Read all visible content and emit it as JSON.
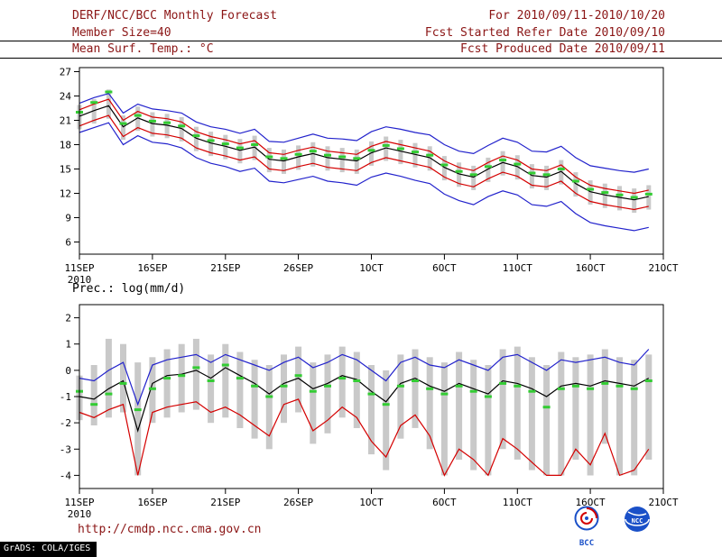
{
  "header": {
    "title": "DERF/NCC/BCC Monthly Forecast",
    "member_size": "Member Size=40",
    "variable": "Mean Surf. Temp.: °C",
    "for_range": "For 2010/09/11-2010/10/20",
    "fcst_started": "Fcst Started Refer Date 2010/09/10",
    "fcst_produced": "Fcst Produced Date 2010/09/11"
  },
  "footer": {
    "url": "http://cmdp.ncc.cma.gov.cn",
    "grads_credit": "GrADS: COLA/IGES",
    "bcc_label": "BCC",
    "ncc_label": "NCC"
  },
  "colors": {
    "header_text": "#8b1515",
    "line_blue": "#2222cc",
    "line_red": "#d40000",
    "line_black": "#000000",
    "marker_green": "#33cc33",
    "bar_gray": "#c9c9c9"
  },
  "chart_data": [
    {
      "type": "line",
      "title": "Mean Surf. Temp.: °C",
      "ylabel": "°C",
      "ylim": [
        4.5,
        27.5
      ],
      "yticks": [
        27,
        24,
        21,
        18,
        15,
        12,
        9,
        6
      ],
      "x_span": 40,
      "x_tick_days": [
        0,
        5,
        10,
        15,
        20,
        25,
        30,
        35,
        40
      ],
      "x_tick_labels": [
        "11SEP",
        "16SEP",
        "21SEP",
        "26SEP",
        "1OCT",
        "6OCT",
        "11OCT",
        "16OCT",
        "21OCT"
      ],
      "x_sub_label": "2010",
      "grid": false,
      "legend": "none",
      "series": [
        {
          "name": "member-spread",
          "type": "bar-range",
          "color": "#c9c9c9",
          "hi": [
            22.9,
            23.6,
            24.8,
            21.6,
            22.7,
            22.0,
            21.8,
            21.4,
            20.2,
            19.6,
            19.2,
            18.7,
            19.1,
            17.6,
            17.4,
            17.9,
            18.3,
            17.8,
            17.6,
            17.4,
            18.4,
            19.0,
            18.6,
            18.2,
            17.8,
            16.6,
            15.8,
            15.4,
            16.4,
            17.2,
            16.7,
            15.6,
            15.4,
            16.1,
            14.6,
            13.6,
            13.2,
            12.9,
            12.6,
            13.0
          ],
          "lo": [
            19.9,
            20.6,
            21.2,
            18.6,
            19.7,
            19.0,
            18.8,
            18.4,
            17.2,
            16.6,
            16.2,
            15.7,
            16.1,
            14.6,
            14.4,
            14.9,
            15.3,
            14.8,
            14.6,
            14.4,
            15.4,
            16.0,
            15.6,
            15.2,
            14.8,
            13.6,
            12.8,
            12.4,
            13.4,
            14.2,
            13.7,
            12.6,
            12.4,
            13.1,
            11.6,
            10.6,
            10.2,
            9.9,
            9.6,
            10.0
          ]
        },
        {
          "name": "envelope-upper",
          "type": "line",
          "color": "#2222cc",
          "values": [
            23.1,
            23.8,
            24.3,
            21.9,
            23.0,
            22.4,
            22.2,
            21.9,
            20.8,
            20.2,
            19.9,
            19.4,
            19.9,
            18.4,
            18.3,
            18.8,
            19.3,
            18.8,
            18.7,
            18.5,
            19.6,
            20.2,
            19.9,
            19.5,
            19.2,
            18.0,
            17.2,
            16.9,
            17.9,
            18.8,
            18.3,
            17.2,
            17.1,
            17.8,
            16.4,
            15.4,
            15.1,
            14.8,
            14.6,
            15.0
          ]
        },
        {
          "name": "quartile-upper",
          "type": "line",
          "color": "#d40000",
          "values": [
            22.3,
            23.0,
            23.6,
            21.0,
            22.1,
            21.4,
            21.2,
            20.8,
            19.6,
            19.0,
            18.6,
            18.1,
            18.5,
            17.0,
            16.8,
            17.3,
            17.7,
            17.2,
            17.0,
            16.8,
            17.8,
            18.4,
            18.0,
            17.6,
            17.2,
            16.0,
            15.2,
            14.8,
            15.8,
            16.6,
            16.1,
            15.0,
            14.8,
            15.5,
            14.0,
            13.0,
            12.6,
            12.3,
            12.0,
            12.4
          ]
        },
        {
          "name": "median",
          "type": "line",
          "color": "#000000",
          "values": [
            21.5,
            22.2,
            22.8,
            20.2,
            21.3,
            20.6,
            20.4,
            20.0,
            18.8,
            18.2,
            17.8,
            17.3,
            17.7,
            16.2,
            16.0,
            16.5,
            16.9,
            16.4,
            16.2,
            16.0,
            17.0,
            17.6,
            17.2,
            16.8,
            16.4,
            15.2,
            14.4,
            14.0,
            15.0,
            15.8,
            15.3,
            14.2,
            14.0,
            14.7,
            13.2,
            12.2,
            11.8,
            11.5,
            11.2,
            11.6
          ]
        },
        {
          "name": "quartile-lower",
          "type": "line",
          "color": "#d40000",
          "values": [
            20.3,
            21.0,
            21.6,
            19.0,
            20.1,
            19.4,
            19.2,
            18.8,
            17.6,
            17.0,
            16.6,
            16.1,
            16.5,
            15.0,
            14.8,
            15.3,
            15.7,
            15.2,
            15.0,
            14.8,
            15.8,
            16.4,
            16.0,
            15.6,
            15.2,
            14.0,
            13.2,
            12.8,
            13.8,
            14.6,
            14.1,
            13.0,
            12.8,
            13.5,
            12.0,
            11.0,
            10.6,
            10.3,
            10.0,
            10.4
          ]
        },
        {
          "name": "envelope-lower",
          "type": "line",
          "color": "#2222cc",
          "values": [
            19.5,
            20.1,
            20.7,
            18.0,
            19.1,
            18.3,
            18.1,
            17.6,
            16.4,
            15.7,
            15.3,
            14.7,
            15.1,
            13.5,
            13.3,
            13.7,
            14.1,
            13.5,
            13.3,
            13.0,
            14.0,
            14.5,
            14.1,
            13.6,
            13.2,
            11.9,
            11.1,
            10.6,
            11.6,
            12.3,
            11.8,
            10.6,
            10.4,
            11.0,
            9.5,
            8.4,
            8.0,
            7.7,
            7.4,
            7.8
          ]
        },
        {
          "name": "ensemble-mean-marks",
          "type": "dash",
          "color": "#33cc33",
          "values": [
            22.0,
            23.2,
            24.5,
            20.6,
            21.6,
            20.9,
            20.7,
            20.3,
            19.1,
            18.5,
            18.1,
            17.6,
            18.0,
            16.5,
            16.3,
            16.8,
            17.2,
            16.7,
            16.5,
            16.3,
            17.3,
            17.9,
            17.5,
            17.1,
            16.7,
            15.5,
            14.7,
            14.3,
            15.3,
            16.1,
            15.6,
            14.5,
            14.3,
            15.0,
            13.5,
            12.5,
            12.1,
            11.8,
            11.5,
            11.9
          ]
        }
      ]
    },
    {
      "type": "line",
      "title": "Prec.: log(mm/d)",
      "ylabel": "log(mm/d)",
      "ylim": [
        -4.5,
        2.5
      ],
      "yticks": [
        2,
        1,
        0,
        -1,
        -2,
        -3,
        -4
      ],
      "x_span": 40,
      "x_tick_days": [
        0,
        5,
        10,
        15,
        20,
        25,
        30,
        35,
        40
      ],
      "x_tick_labels": [
        "11SEP",
        "16SEP",
        "21SEP",
        "26SEP",
        "1OCT",
        "6OCT",
        "11OCT",
        "16OCT",
        "21OCT"
      ],
      "x_sub_label": "2010",
      "grid": false,
      "legend": "none",
      "series": [
        {
          "name": "member-spread",
          "type": "bar-range",
          "color": "#c9c9c9",
          "hi": [
            -0.2,
            0.2,
            1.2,
            1.0,
            0.3,
            0.5,
            0.8,
            1.0,
            1.2,
            0.6,
            1.0,
            0.7,
            0.4,
            0.2,
            0.6,
            0.9,
            0.3,
            0.6,
            0.9,
            0.7,
            0.2,
            0.0,
            0.6,
            0.8,
            0.5,
            0.3,
            0.7,
            0.4,
            0.2,
            0.8,
            0.9,
            0.5,
            0.2,
            0.7,
            0.5,
            0.6,
            0.8,
            0.5,
            0.4,
            0.6
          ],
          "lo": [
            -1.9,
            -2.1,
            -1.8,
            -1.6,
            -4.0,
            -2.0,
            -1.8,
            -1.6,
            -1.5,
            -2.0,
            -1.8,
            -2.2,
            -2.6,
            -3.0,
            -2.0,
            -1.6,
            -2.8,
            -2.4,
            -1.8,
            -2.2,
            -3.2,
            -3.8,
            -2.6,
            -2.2,
            -3.0,
            -4.0,
            -3.4,
            -3.8,
            -4.0,
            -3.0,
            -3.4,
            -3.8,
            -4.0,
            -4.0,
            -3.4,
            -4.0,
            -2.8,
            -4.0,
            -4.0,
            -3.4
          ]
        },
        {
          "name": "envelope-upper",
          "type": "line",
          "color": "#2222cc",
          "values": [
            -0.3,
            -0.4,
            0.0,
            0.3,
            -1.3,
            0.2,
            0.4,
            0.5,
            0.6,
            0.3,
            0.6,
            0.4,
            0.2,
            0.0,
            0.3,
            0.5,
            0.1,
            0.3,
            0.6,
            0.4,
            0.0,
            -0.4,
            0.3,
            0.5,
            0.2,
            0.1,
            0.4,
            0.2,
            0.0,
            0.5,
            0.6,
            0.3,
            0.0,
            0.4,
            0.3,
            0.4,
            0.5,
            0.3,
            0.2,
            0.8
          ]
        },
        {
          "name": "median",
          "type": "line",
          "color": "#000000",
          "values": [
            -1.0,
            -1.1,
            -0.7,
            -0.4,
            -2.3,
            -0.5,
            -0.2,
            -0.15,
            0.0,
            -0.3,
            0.1,
            -0.2,
            -0.5,
            -0.9,
            -0.5,
            -0.3,
            -0.7,
            -0.5,
            -0.2,
            -0.35,
            -0.8,
            -1.2,
            -0.5,
            -0.3,
            -0.6,
            -0.8,
            -0.5,
            -0.7,
            -0.9,
            -0.4,
            -0.5,
            -0.7,
            -1.0,
            -0.6,
            -0.5,
            -0.6,
            -0.4,
            -0.5,
            -0.6,
            -0.3
          ]
        },
        {
          "name": "envelope-lower",
          "type": "line",
          "color": "#d40000",
          "values": [
            -1.6,
            -1.8,
            -1.5,
            -1.3,
            -4.0,
            -1.6,
            -1.4,
            -1.3,
            -1.2,
            -1.6,
            -1.4,
            -1.7,
            -2.1,
            -2.5,
            -1.3,
            -1.1,
            -2.3,
            -1.9,
            -1.4,
            -1.8,
            -2.7,
            -3.3,
            -2.1,
            -1.7,
            -2.5,
            -4.0,
            -3.0,
            -3.4,
            -4.0,
            -2.6,
            -3.0,
            -3.5,
            -4.0,
            -4.0,
            -3.0,
            -3.6,
            -2.4,
            -4.0,
            -3.8,
            -3.0
          ]
        },
        {
          "name": "ensemble-mean-marks",
          "type": "dash",
          "color": "#33cc33",
          "values": [
            -0.8,
            -1.3,
            -0.9,
            -0.5,
            -1.5,
            -0.7,
            -0.3,
            -0.2,
            0.1,
            -0.4,
            0.2,
            -0.3,
            -0.6,
            -1.0,
            -0.6,
            -0.2,
            -0.8,
            -0.6,
            -0.3,
            -0.4,
            -0.9,
            -1.3,
            -0.6,
            -0.4,
            -0.7,
            -0.9,
            -0.6,
            -0.8,
            -1.0,
            -0.5,
            -0.6,
            -0.8,
            -1.4,
            -0.7,
            -0.6,
            -0.7,
            -0.5,
            -0.6,
            -0.7,
            -0.4
          ]
        }
      ]
    }
  ]
}
